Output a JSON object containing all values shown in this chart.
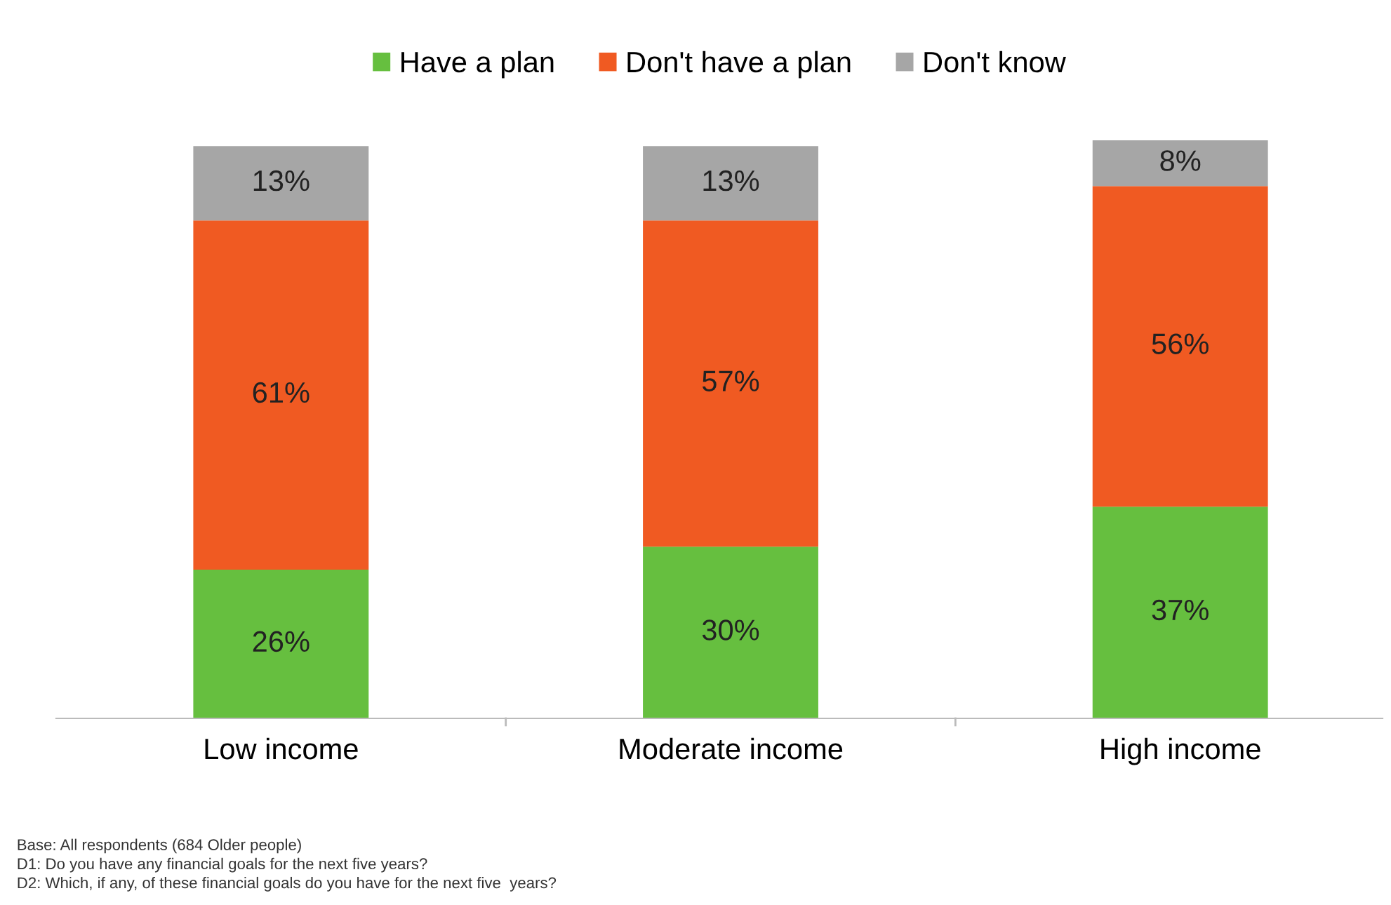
{
  "chart_data": {
    "type": "bar",
    "stacked": true,
    "legend": "top",
    "grid": false,
    "categories": [
      "Low income",
      "Moderate income",
      "High income"
    ],
    "series": [
      {
        "name": "Have a plan",
        "color": "#66bf3f",
        "values": [
          26,
          30,
          37
        ],
        "value_labels": [
          "26%",
          "30%",
          "37%"
        ]
      },
      {
        "name": "Don't have a plan",
        "color": "#f05a22",
        "values": [
          61,
          57,
          56
        ],
        "value_labels": [
          "61%",
          "57%",
          "56%"
        ]
      },
      {
        "name": "Don't know",
        "color": "#a6a6a6",
        "values": [
          13,
          13,
          8
        ],
        "value_labels": [
          "13%",
          "13%",
          "8%"
        ]
      }
    ],
    "annotations": [
      "Base: All respondents (684 Older people)\nD1: Do you have any financial goals for the next five years?\nD2: Which, if any, of these financial goals do you have for the next five  years?"
    ]
  }
}
